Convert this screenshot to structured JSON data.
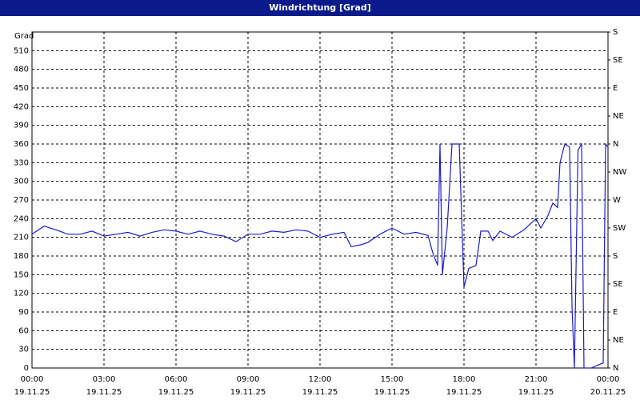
{
  "chart_data": {
    "type": "line",
    "title": "Windrichtung [Grad]",
    "y_label": "Grad",
    "x": [
      0,
      0.5,
      1,
      1.5,
      2,
      2.5,
      3,
      3.5,
      4,
      4.5,
      5,
      5.5,
      6,
      6.5,
      7,
      7.5,
      8,
      8.5,
      9,
      9.5,
      10,
      10.5,
      11,
      11.5,
      12,
      12.5,
      13,
      13.3,
      13.7,
      14,
      14.5,
      15,
      15.5,
      16,
      16.5,
      16.7,
      16.9,
      17.0,
      17.1,
      17.3,
      17.5,
      17.8,
      18.0,
      18.2,
      18.5,
      18.7,
      19.0,
      19.2,
      19.5,
      20.0,
      20.5,
      21.0,
      21.2,
      21.5,
      21.7,
      21.9,
      22.0,
      22.2,
      22.4,
      22.5,
      22.6,
      22.75,
      22.9,
      23.0,
      23.3,
      23.6,
      23.8,
      23.9,
      24
    ],
    "series": [
      {
        "name": "Windrichtung",
        "color": "#1c1cc8",
        "values": [
          215,
          228,
          222,
          215,
          215,
          220,
          212,
          215,
          218,
          212,
          218,
          222,
          220,
          215,
          220,
          215,
          212,
          203,
          215,
          215,
          220,
          218,
          222,
          220,
          210,
          215,
          218,
          195,
          198,
          202,
          215,
          225,
          215,
          218,
          213,
          185,
          165,
          360,
          150,
          225,
          360,
          360,
          130,
          160,
          165,
          220,
          220,
          205,
          220,
          210,
          222,
          240,
          225,
          245,
          265,
          258,
          330,
          360,
          355,
          100,
          0,
          350,
          360,
          0,
          0,
          5,
          8,
          360,
          355
        ]
      }
    ],
    "xlim": [
      0,
      24
    ],
    "xticks": [
      {
        "value": 0,
        "label": "00:00"
      },
      {
        "value": 3,
        "label": "03:00"
      },
      {
        "value": 6,
        "label": "06:00"
      },
      {
        "value": 9,
        "label": "09:00"
      },
      {
        "value": 12,
        "label": "12:00"
      },
      {
        "value": 15,
        "label": "15:00"
      },
      {
        "value": 18,
        "label": "18:00"
      },
      {
        "value": 21,
        "label": "21:00"
      },
      {
        "value": 24,
        "label": "00:00"
      }
    ],
    "xtick_dates": [
      "19.11.25",
      "19.11.25",
      "19.11.25",
      "19.11.25",
      "19.11.25",
      "19.11.25",
      "19.11.25",
      "19.11.25",
      "20.11.25"
    ],
    "ylim": [
      0,
      540
    ],
    "yticks": [
      0,
      30,
      60,
      90,
      120,
      150,
      180,
      210,
      240,
      270,
      300,
      330,
      360,
      390,
      420,
      450,
      480,
      510
    ],
    "y2lim": [
      0,
      540
    ],
    "y2ticks": [
      {
        "value": 0,
        "label": "N"
      },
      {
        "value": 45,
        "label": "NE"
      },
      {
        "value": 90,
        "label": "E"
      },
      {
        "value": 135,
        "label": "SE"
      },
      {
        "value": 180,
        "label": "S"
      },
      {
        "value": 225,
        "label": "SW"
      },
      {
        "value": 270,
        "label": "W"
      },
      {
        "value": 315,
        "label": "NW"
      },
      {
        "value": 360,
        "label": "N"
      },
      {
        "value": 405,
        "label": "NE"
      },
      {
        "value": 450,
        "label": "E"
      },
      {
        "value": 495,
        "label": "SE"
      },
      {
        "value": 540,
        "label": "S"
      }
    ],
    "grid": true
  }
}
